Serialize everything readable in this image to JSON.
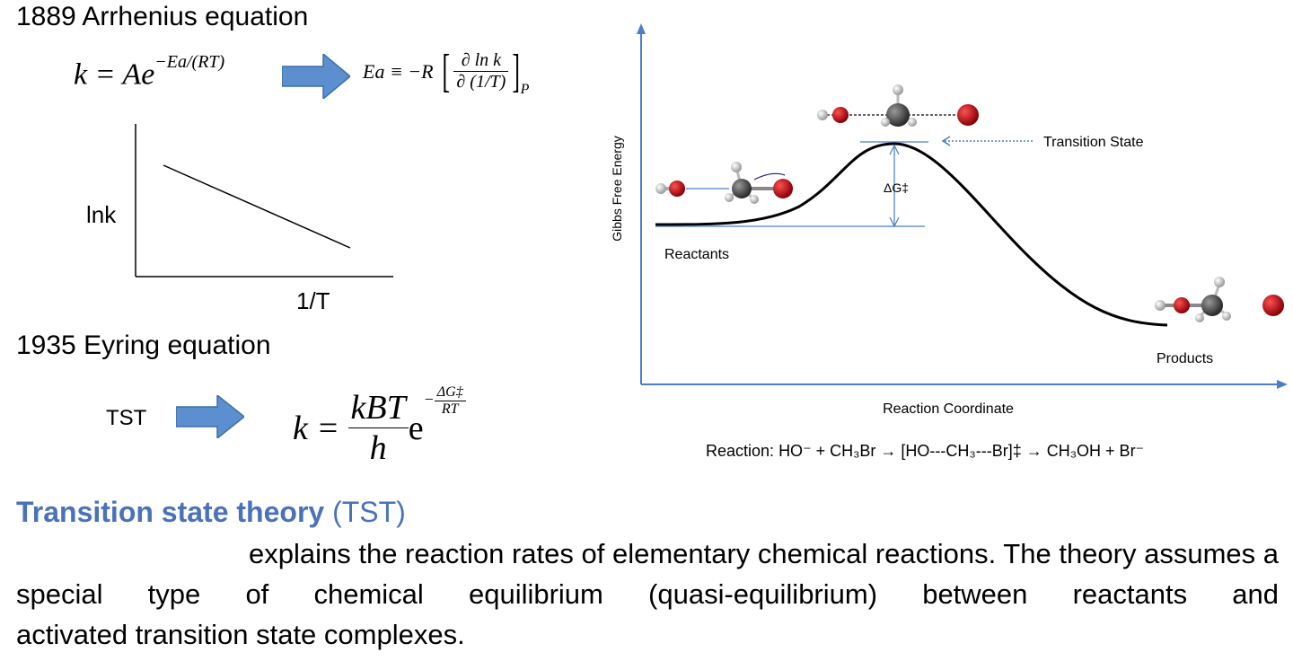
{
  "arrhenius": {
    "heading": "1889 Arrhenius equation",
    "formula_lhs": "k = Ae",
    "formula_exp": "−Ea/(RT)",
    "activation_def_lhs": "Ea ≡ −R",
    "activation_def_num": "∂ ln k",
    "activation_def_den": "∂ (1/T)",
    "activation_def_sub": "P"
  },
  "lnk_plot": {
    "ylabel": "lnk",
    "xlabel": "1/T"
  },
  "eyring": {
    "heading": "1935 Eyring equation",
    "arrow_label": "TST",
    "formula_lhs": "k =",
    "frac_num": "kBT",
    "frac_den": "h",
    "exp_base": "e",
    "exp_num": "ΔG‡",
    "exp_den": "RT"
  },
  "energy_diagram": {
    "ylabel": "Gibbs Free Energy",
    "xlabel": "Reaction Coordinate",
    "transition_state_label": "Transition State",
    "delta_g_label": "ΔG‡",
    "reactants_label": "Reactants",
    "products_label": "Products",
    "reaction_prefix": "Reaction:",
    "reaction_text": "HO⁻ + CH₃Br → [HO---CH₃---Br]‡ → CH₃OH + Br⁻"
  },
  "colors": {
    "accent_blue": "#4a72b8",
    "arrow_blue": "#5b8fcf",
    "axis_blue": "#4a7ec8",
    "oxygen_red": "#c0151a",
    "carbon_gray": "#555555",
    "hydrogen_white": "#eeeeee"
  },
  "description": {
    "title_bold": "Transition state theory",
    "title_abbrev": "(TST)",
    "line1": "explains the reaction rates of elementary chemical reactions. The theory assumes a",
    "line2": "special type of chemical equilibrium (quasi-equilibrium) between reactants and",
    "line3": "activated transition state complexes."
  }
}
